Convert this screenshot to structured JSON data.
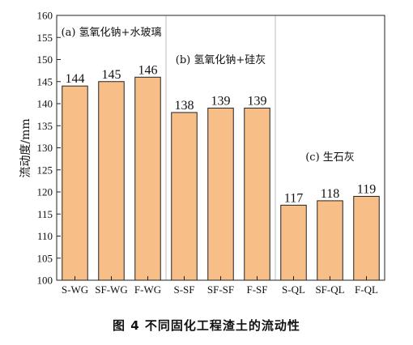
{
  "caption": "图 4   不同固化工程渣土的流动性",
  "chart_data": {
    "type": "bar",
    "ylabel": "流动度/mm",
    "ylim": [
      100,
      160
    ],
    "yticks": [
      100,
      105,
      110,
      115,
      120,
      125,
      130,
      135,
      140,
      145,
      150,
      155,
      160
    ],
    "categories": [
      "S-WG",
      "SF-WG",
      "F-WG",
      "S-SF",
      "SF-SF",
      "F-SF",
      "S-QL",
      "SF-QL",
      "F-QL"
    ],
    "values": [
      144,
      145,
      146,
      138,
      139,
      139,
      117,
      118,
      119
    ],
    "groups": [
      {
        "label": "(a) 氢氧化钠+水玻璃",
        "categories": [
          "S-WG",
          "SF-WG",
          "F-WG"
        ]
      },
      {
        "label": "(b) 氢氧化钠+硅灰",
        "categories": [
          "S-SF",
          "SF-SF",
          "F-SF"
        ]
      },
      {
        "label": "(c) 生石灰",
        "categories": [
          "S-QL",
          "SF-QL",
          "F-QL"
        ]
      }
    ],
    "bar_color": "#F8BE88",
    "grid": false
  }
}
